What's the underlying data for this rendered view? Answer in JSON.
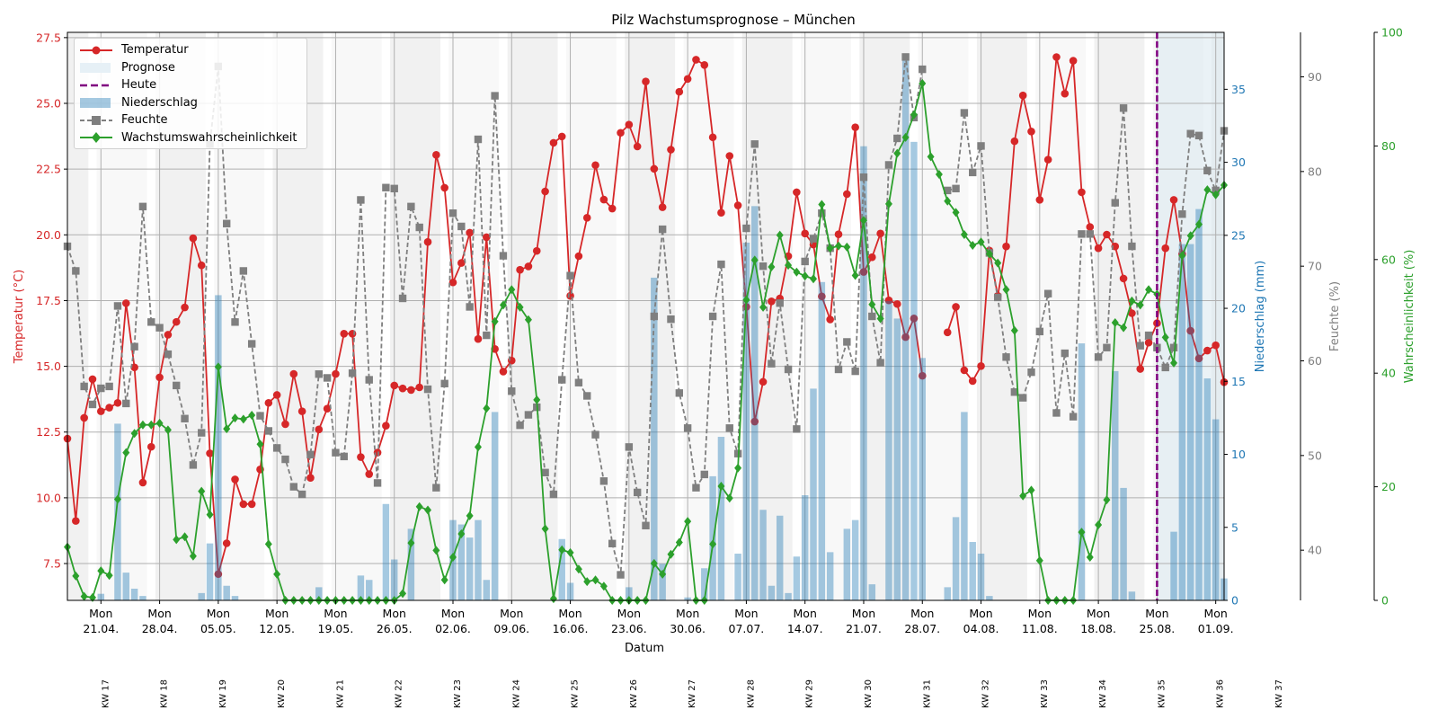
{
  "chart_data": {
    "type": "line",
    "title": "Pilz Wachstumsprognose – München",
    "xlabel": "Datum",
    "ylabel_left": "Temperatur (°C)",
    "ylabel_rain": "Niederschlag (mm)",
    "ylabel_humidity": "Feuchte (%)",
    "ylabel_probability": "Wahrscheinlichkeit (%)",
    "ylim_temperature": [
      6.1,
      27.7
    ],
    "ylim_rain": [
      0,
      38.9
    ],
    "ylim_humidity": [
      34.7,
      94.7
    ],
    "ylim_probability": [
      0,
      100
    ],
    "grid": true,
    "legend_position": "top-left",
    "start_date": "17.04.",
    "today_index": 130,
    "forecast_start_index": 130,
    "colors": {
      "temperature": "#d62728",
      "rain": "#1f77b4",
      "humidity": "#7f7f7f",
      "probability": "#2ca02c",
      "today": "#800080",
      "forecast": "#dce9f0"
    },
    "legend": [
      "Temperatur",
      "Prognose",
      "Heute",
      "Niederschlag",
      "Feuchte",
      "Wachstumswahrscheinlichkeit"
    ],
    "y_ticks_temperature": [
      "7.5",
      "10.0",
      "12.5",
      "15.0",
      "17.5",
      "20.0",
      "22.5",
      "25.0",
      "27.5"
    ],
    "y_ticks_rain": [
      "0",
      "5",
      "10",
      "15",
      "20",
      "25",
      "30",
      "35"
    ],
    "y_ticks_humidity": [
      "40",
      "50",
      "60",
      "70",
      "80",
      "90"
    ],
    "y_ticks_probability": [
      "0",
      "20",
      "40",
      "60",
      "80",
      "100"
    ],
    "x_ticks": [
      {
        "index": 4,
        "day": "Mon",
        "date": "21.04."
      },
      {
        "index": 11,
        "day": "Mon",
        "date": "28.04."
      },
      {
        "index": 18,
        "day": "Mon",
        "date": "05.05."
      },
      {
        "index": 25,
        "day": "Mon",
        "date": "12.05."
      },
      {
        "index": 32,
        "day": "Mon",
        "date": "19.05."
      },
      {
        "index": 39,
        "day": "Mon",
        "date": "26.05."
      },
      {
        "index": 46,
        "day": "Mon",
        "date": "02.06."
      },
      {
        "index": 53,
        "day": "Mon",
        "date": "09.06."
      },
      {
        "index": 60,
        "day": "Mon",
        "date": "16.06."
      },
      {
        "index": 67,
        "day": "Mon",
        "date": "23.06."
      },
      {
        "index": 74,
        "day": "Mon",
        "date": "30.06."
      },
      {
        "index": 81,
        "day": "Mon",
        "date": "07.07."
      },
      {
        "index": 88,
        "day": "Mon",
        "date": "14.07."
      },
      {
        "index": 95,
        "day": "Mon",
        "date": "21.07."
      },
      {
        "index": 102,
        "day": "Mon",
        "date": "28.07."
      },
      {
        "index": 109,
        "day": "Mon",
        "date": "04.08."
      },
      {
        "index": 116,
        "day": "Mon",
        "date": "11.08."
      },
      {
        "index": 123,
        "day": "Mon",
        "date": "18.08."
      },
      {
        "index": 130,
        "day": "Mon",
        "date": "25.08."
      },
      {
        "index": 137,
        "day": "Mon",
        "date": "01.09."
      }
    ],
    "week_labels": [
      "KW 17",
      "KW 18",
      "KW 19",
      "KW 20",
      "KW 21",
      "KW 22",
      "KW 23",
      "KW 24",
      "KW 25",
      "KW 26",
      "KW 27",
      "KW 28",
      "KW 29",
      "KW 30",
      "KW 31",
      "KW 32",
      "KW 33",
      "KW 34",
      "KW 35",
      "KW 36",
      "KW 37"
    ],
    "series": [
      {
        "name": "Temperatur",
        "axis": "temperature",
        "values": [
          12.25,
          9.12,
          13.04,
          14.51,
          13.29,
          13.43,
          13.61,
          17.4,
          14.96,
          10.58,
          11.94,
          14.58,
          16.2,
          16.69,
          17.24,
          19.87,
          18.84,
          11.69,
          7.1,
          8.27,
          10.7,
          9.76,
          9.76,
          11.08,
          13.61,
          13.91,
          12.8,
          14.71,
          13.29,
          10.76,
          12.6,
          13.39,
          14.71,
          16.24,
          16.24,
          11.55,
          10.9,
          11.72,
          12.74,
          14.27,
          14.16,
          14.1,
          14.2,
          19.73,
          23.04,
          21.79,
          18.19,
          18.93,
          20.08,
          16.04,
          19.91,
          15.66,
          14.8,
          15.22,
          18.67,
          18.8,
          19.39,
          21.65,
          23.5,
          23.74,
          17.68,
          19.19,
          20.65,
          22.65,
          21.34,
          21.0,
          23.88,
          24.19,
          23.36,
          25.83,
          22.51,
          21.05,
          23.24,
          25.44,
          25.93,
          26.66,
          26.46,
          23.71,
          20.84,
          23.0,
          21.12,
          17.26,
          12.9,
          14.41,
          17.47,
          17.58,
          19.19,
          21.62,
          20.05,
          19.63,
          17.66,
          16.78,
          20.02,
          21.55,
          24.09,
          18.59,
          19.15,
          20.05,
          17.51,
          17.37,
          16.11,
          16.82,
          14.64,
          null,
          null,
          16.29,
          17.26,
          14.85,
          14.44,
          15.01,
          19.4,
          17.68,
          19.56,
          23.56,
          25.3,
          23.93,
          21.33,
          22.86,
          26.76,
          25.37,
          26.62,
          21.62,
          20.3,
          19.49,
          20.01,
          19.56,
          18.34,
          17.02,
          14.9,
          15.9,
          16.64,
          19.49,
          21.33,
          19.27,
          16.35,
          15.3,
          15.6,
          15.8,
          14.4
        ]
      },
      {
        "name": "Niederschlag",
        "axis": "rain",
        "values": [
          0,
          0,
          0,
          0,
          0.45,
          0,
          12.1,
          1.9,
          0.8,
          0.3,
          0,
          0,
          0,
          0,
          0,
          0,
          0.5,
          3.9,
          20.9,
          1.0,
          0.3,
          0,
          0,
          0,
          0,
          0,
          0,
          0,
          0,
          0,
          0.9,
          0,
          0,
          0,
          0,
          1.7,
          1.4,
          0,
          6.6,
          2.8,
          0,
          4.9,
          0,
          0,
          0,
          0,
          5.5,
          5.2,
          4.3,
          5.5,
          1.4,
          12.9,
          0,
          0,
          0,
          0,
          0,
          0,
          0,
          4.2,
          1.2,
          0,
          0,
          0,
          0,
          0,
          0,
          0.9,
          0,
          0,
          22.1,
          2.5,
          0,
          0,
          0.2,
          0,
          2.2,
          8.5,
          11.2,
          0,
          3.2,
          24.5,
          27.0,
          6.2,
          1.0,
          5.8,
          0.5,
          3.0,
          7.2,
          14.5,
          21.8,
          3.3,
          0,
          4.9,
          5.5,
          31.1,
          1.1,
          0,
          20.5,
          19.3,
          37.0,
          31.4,
          16.6,
          0,
          0,
          0.9,
          5.7,
          12.9,
          4.0,
          3.2,
          0.3,
          0,
          0,
          0,
          0,
          0,
          0,
          0,
          0,
          0,
          0,
          17.6,
          0,
          0,
          0,
          15.7,
          7.7,
          0.6,
          0,
          0,
          0,
          0,
          4.7,
          24.4,
          24.4,
          26.8,
          15.2,
          12.4,
          1.5
        ]
      },
      {
        "name": "Feuchte",
        "axis": "humidity",
        "values": [
          72.1,
          69.5,
          57.3,
          55.4,
          57.1,
          57.3,
          65.8,
          55.5,
          61.5,
          76.3,
          64.1,
          63.5,
          60.7,
          57.4,
          53.9,
          49.0,
          52.4,
          82.9,
          91.1,
          74.5,
          64.1,
          69.5,
          61.8,
          54.2,
          52.6,
          50.8,
          49.6,
          46.7,
          45.9,
          50.1,
          58.6,
          58.2,
          50.3,
          49.9,
          58.7,
          77.0,
          58.0,
          47.1,
          78.3,
          78.2,
          66.6,
          76.3,
          74.1,
          57.0,
          46.6,
          57.6,
          75.6,
          74.2,
          65.7,
          83.4,
          62.7,
          88.0,
          71.1,
          56.8,
          53.2,
          54.3,
          55.1,
          48.2,
          45.9,
          58.0,
          69.0,
          57.7,
          56.3,
          52.2,
          47.3,
          40.7,
          37.4,
          50.9,
          46.1,
          42.6,
          64.7,
          73.9,
          64.4,
          56.6,
          52.9,
          46.6,
          48.0,
          64.7,
          70.2,
          52.9,
          50.2,
          74.0,
          82.9,
          70.0,
          59.7,
          66.1,
          59.1,
          52.8,
          70.5,
          72.9,
          75.6,
          71.9,
          59.1,
          62.0,
          58.9,
          79.4,
          64.7,
          59.8,
          80.7,
          83.5,
          92.1,
          85.7,
          90.8,
          null,
          null,
          78.0,
          78.2,
          86.2,
          79.9,
          82.7,
          71.4,
          66.7,
          60.4,
          56.7,
          56.1,
          58.8,
          63.1,
          67.1,
          54.5,
          60.8,
          54.1,
          73.4,
          73.4,
          60.4,
          61.4,
          76.7,
          86.7,
          72.1,
          61.6,
          62.7,
          61.4,
          59.3,
          61.4,
          75.5,
          84.0,
          83.8,
          80.1,
          78.0,
          84.3
        ]
      },
      {
        "name": "Wachstumswahrscheinlichkeit",
        "axis": "probability",
        "values": [
          9.4,
          4.3,
          0.7,
          0.5,
          5.2,
          4.4,
          17.8,
          26.0,
          29.4,
          30.9,
          30.9,
          31.2,
          30.0,
          10.7,
          11.2,
          7.8,
          19.2,
          15.1,
          41.1,
          30.2,
          32.1,
          31.9,
          32.6,
          27.5,
          9.9,
          4.6,
          0,
          0,
          0,
          0,
          0,
          0,
          0,
          0,
          0,
          0,
          0,
          0,
          0,
          0,
          1.2,
          10.1,
          16.5,
          15.9,
          8.8,
          3.6,
          7.6,
          11.7,
          14.9,
          27.0,
          33.8,
          49.1,
          52.0,
          54.7,
          51.6,
          49.4,
          35.3,
          12.6,
          0.3,
          8.9,
          8.4,
          5.5,
          3.3,
          3.6,
          2.5,
          0,
          0,
          0,
          0,
          0,
          6.5,
          4.6,
          8.1,
          10.2,
          13.9,
          0,
          0,
          9.9,
          20.1,
          18.0,
          23.3,
          52.9,
          59.9,
          51.6,
          58.7,
          64.3,
          59.0,
          57.8,
          57.1,
          56.6,
          69.7,
          62.0,
          62.4,
          62.2,
          57.2,
          66.9,
          52.1,
          49.6,
          69.8,
          78.7,
          81.5,
          85.5,
          91.0,
          78.1,
          75.0,
          70.3,
          68.3,
          64.4,
          62.5,
          63.1,
          61.0,
          59.4,
          54.7,
          47.5,
          18.4,
          19.4,
          7.0,
          0,
          0,
          0,
          0,
          12.0,
          7.6,
          13.3,
          17.7,
          48.9,
          48.0,
          52.7,
          52.0,
          54.7,
          53.9,
          46.3,
          41.8,
          60.7,
          64.2,
          66.2,
          72.3,
          71.4,
          73.1
        ]
      }
    ]
  }
}
